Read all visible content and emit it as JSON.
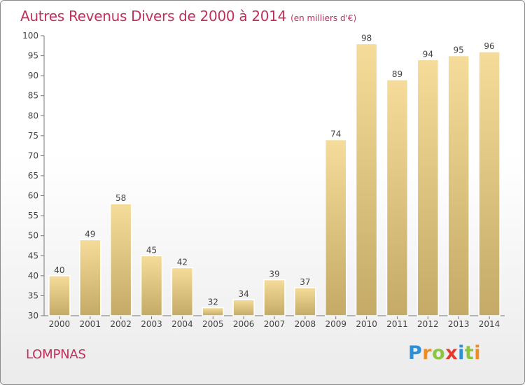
{
  "header": {
    "title": "Autres Revenus Divers de 2000 à 2014",
    "subtitle": "(en milliers d'€)"
  },
  "footer": {
    "commune": "LOMPNAS",
    "brand": "Proxiti",
    "brand_letters": [
      {
        "ch": "P",
        "color": "#2e8fd6"
      },
      {
        "ch": "r",
        "color": "#f28c1e"
      },
      {
        "ch": "o",
        "color": "#8cc63f"
      },
      {
        "ch": "x",
        "color": "#e53a2f"
      },
      {
        "ch": "i",
        "color": "#2e8fd6"
      },
      {
        "ch": "t",
        "color": "#8cc63f"
      },
      {
        "ch": "i",
        "color": "#f28c1e"
      }
    ]
  },
  "chart_data": {
    "type": "bar",
    "title": "Autres Revenus Divers de 2000 à 2014",
    "subtitle": "(en milliers d'€)",
    "xlabel": "",
    "ylabel": "",
    "categories": [
      "2000",
      "2001",
      "2002",
      "2003",
      "2004",
      "2005",
      "2006",
      "2007",
      "2008",
      "2009",
      "2010",
      "2011",
      "2012",
      "2013",
      "2014"
    ],
    "values": [
      40,
      49,
      58,
      45,
      42,
      32,
      34,
      39,
      37,
      74,
      98,
      89,
      94,
      95,
      96
    ],
    "ylim": [
      30,
      100
    ],
    "yticks": [
      30,
      35,
      40,
      45,
      50,
      55,
      60,
      65,
      70,
      75,
      80,
      85,
      90,
      95,
      100
    ],
    "grid": false,
    "colors": {
      "bar_top": "#f6dc9a",
      "bar_bottom": "#c4aa66",
      "axis": "#777777",
      "text": "#444444",
      "accent": "#c0305a"
    }
  }
}
